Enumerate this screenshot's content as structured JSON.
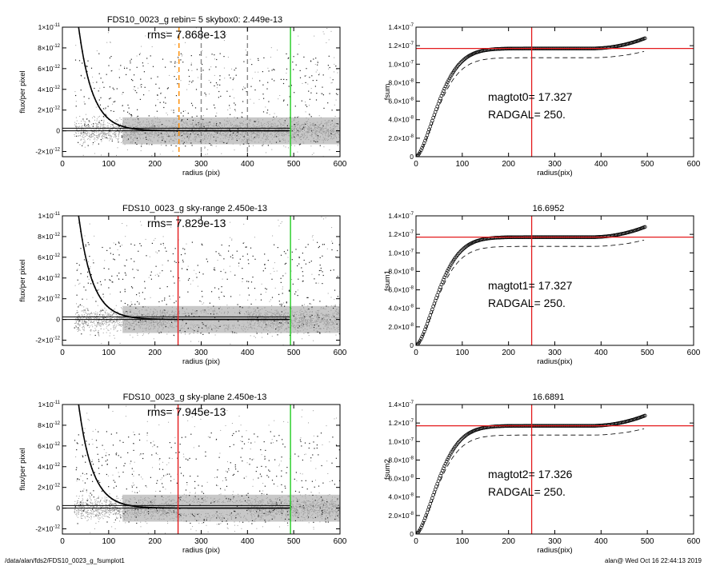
{
  "footer": {
    "left": "/data/alan/fds2/FDS10_0023_g_fsumplot1",
    "right": "alan@  Wed Oct 16 22:44:13 2019"
  },
  "colors": {
    "black": "#000000",
    "scatter": "#9a9a9a",
    "red": "#e41a1c",
    "green": "#22cc22",
    "orange": "#ff8c00",
    "dashgray": "#888888"
  },
  "chart_data": [
    {
      "type": "scatter",
      "title": "FDS10_0023_g rebin= 5    skybox0:  2.449e-13",
      "annotation": "rms= 7.868e-13",
      "xlabel": "radius (pix)",
      "ylabel": "flux/per pixel",
      "xlim": [
        0,
        600
      ],
      "ylim": [
        -2.5e-12,
        1e-11
      ],
      "xticks": [
        "0",
        "100",
        "200",
        "300",
        "400",
        "500",
        "600"
      ],
      "yticks": [
        {
          "v": 1e-11,
          "b": "1×10",
          "e": "-11"
        },
        {
          "v": 8e-12,
          "b": "8×10",
          "e": "-12"
        },
        {
          "v": 6e-12,
          "b": "6×10",
          "e": "-12"
        },
        {
          "v": 4e-12,
          "b": "4×10",
          "e": "-12"
        },
        {
          "v": 2e-12,
          "b": "2×10",
          "e": "-12"
        },
        {
          "v": 0,
          "b": "0",
          "e": ""
        },
        {
          "v": -2e-12,
          "b": "-2×10",
          "e": "-12"
        }
      ],
      "hlines": [
        2.449e-13,
        0
      ],
      "vlines": [
        {
          "x": 252,
          "color": "orange",
          "dash": true
        },
        {
          "x": 300,
          "color": "dashgray",
          "dash": true
        },
        {
          "x": 400,
          "color": "dashgray",
          "dash": true
        },
        {
          "x": 493,
          "color": "green",
          "dash": false
        }
      ],
      "profile": {
        "amplitude": 1.4e-11,
        "scale": 30,
        "start": 25,
        "end": 490
      }
    },
    {
      "type": "line",
      "title": "",
      "labels": [
        "magtot0=  17.327",
        "RADGAL=    250."
      ],
      "xlabel": "radius(pix)",
      "ylabel": "fsum",
      "xlim": [
        0,
        600
      ],
      "ylim": [
        0,
        1.4e-07
      ],
      "xticks": [
        "0",
        "100",
        "200",
        "300",
        "400",
        "500",
        "600"
      ],
      "yticks": [
        {
          "v": 1.4e-07,
          "b": "1.4×10",
          "e": "-7"
        },
        {
          "v": 1.2e-07,
          "b": "1.2×10",
          "e": "-7"
        },
        {
          "v": 1e-07,
          "b": "1.0×10",
          "e": "-7"
        },
        {
          "v": 8e-08,
          "b": "8.0×10",
          "e": "-8"
        },
        {
          "v": 6e-08,
          "b": "6.0×10",
          "e": "-8"
        },
        {
          "v": 4e-08,
          "b": "4.0×10",
          "e": "-8"
        },
        {
          "v": 2e-08,
          "b": "2.0×10",
          "e": "-8"
        },
        {
          "v": 0,
          "b": "0",
          "e": ""
        }
      ],
      "hline": 1.17e-07,
      "vline": 250,
      "curve": {
        "asymptote": 1.17e-07,
        "scale": 62,
        "rise": 1.1e-08,
        "end": 495
      },
      "dashed": {
        "asymptote": 1.07e-07,
        "scale": 62,
        "rise": 7e-09,
        "end": 495
      }
    },
    {
      "type": "scatter",
      "title": "FDS10_0023_g sky-range  2.450e-13",
      "annotation": "rms= 7.829e-13",
      "xlabel": "radius (pix)",
      "ylabel": "flux/per pixel",
      "xlim": [
        0,
        600
      ],
      "ylim": [
        -2.5e-12,
        1e-11
      ],
      "xticks": [
        "0",
        "100",
        "200",
        "300",
        "400",
        "500",
        "600"
      ],
      "yticks": [
        {
          "v": 1e-11,
          "b": "1×10",
          "e": "-11"
        },
        {
          "v": 8e-12,
          "b": "8×10",
          "e": "-12"
        },
        {
          "v": 6e-12,
          "b": "6×10",
          "e": "-12"
        },
        {
          "v": 4e-12,
          "b": "4×10",
          "e": "-12"
        },
        {
          "v": 2e-12,
          "b": "2×10",
          "e": "-12"
        },
        {
          "v": 0,
          "b": "0",
          "e": ""
        },
        {
          "v": -2e-12,
          "b": "-2×10",
          "e": "-12"
        }
      ],
      "hlines": [
        2.45e-13,
        0
      ],
      "vlines": [
        {
          "x": 250,
          "color": "red",
          "dash": false
        },
        {
          "x": 493,
          "color": "green",
          "dash": false
        }
      ],
      "profile": {
        "amplitude": 1.4e-11,
        "scale": 30,
        "start": 25,
        "end": 490
      }
    },
    {
      "type": "line",
      "title": "16.6952",
      "labels": [
        "magtot1=  17.327",
        "RADGAL=    250."
      ],
      "xlabel": "radius(pix)",
      "ylabel": "fsum1",
      "xlim": [
        0,
        600
      ],
      "ylim": [
        0,
        1.4e-07
      ],
      "xticks": [
        "0",
        "100",
        "200",
        "300",
        "400",
        "500",
        "600"
      ],
      "yticks": [
        {
          "v": 1.4e-07,
          "b": "1.4×10",
          "e": "-7"
        },
        {
          "v": 1.2e-07,
          "b": "1.2×10",
          "e": "-7"
        },
        {
          "v": 1e-07,
          "b": "1.0×10",
          "e": "-7"
        },
        {
          "v": 8e-08,
          "b": "8.0×10",
          "e": "-8"
        },
        {
          "v": 6e-08,
          "b": "6.0×10",
          "e": "-8"
        },
        {
          "v": 4e-08,
          "b": "4.0×10",
          "e": "-8"
        },
        {
          "v": 2e-08,
          "b": "2.0×10",
          "e": "-8"
        },
        {
          "v": 0,
          "b": "0",
          "e": ""
        }
      ],
      "hline": 1.17e-07,
      "vline": 250,
      "curve": {
        "asymptote": 1.17e-07,
        "scale": 62,
        "rise": 1.1e-08,
        "end": 495
      },
      "dashed": {
        "asymptote": 1.07e-07,
        "scale": 62,
        "rise": 7e-09,
        "end": 495
      }
    },
    {
      "type": "scatter",
      "title": "FDS10_0023_g sky-plane  2.450e-13",
      "annotation": "rms= 7.945e-13",
      "xlabel": "radius (pix)",
      "ylabel": "flux/per pixel",
      "xlim": [
        0,
        600
      ],
      "ylim": [
        -2.5e-12,
        1e-11
      ],
      "xticks": [
        "0",
        "100",
        "200",
        "300",
        "400",
        "500",
        "600"
      ],
      "yticks": [
        {
          "v": 1e-11,
          "b": "1×10",
          "e": "-11"
        },
        {
          "v": 8e-12,
          "b": "8×10",
          "e": "-12"
        },
        {
          "v": 6e-12,
          "b": "6×10",
          "e": "-12"
        },
        {
          "v": 4e-12,
          "b": "4×10",
          "e": "-12"
        },
        {
          "v": 2e-12,
          "b": "2×10",
          "e": "-12"
        },
        {
          "v": 0,
          "b": "0",
          "e": ""
        },
        {
          "v": -2e-12,
          "b": "-2×10",
          "e": "-12"
        }
      ],
      "hlines": [
        2.45e-13,
        0
      ],
      "vlines": [
        {
          "x": 250,
          "color": "red",
          "dash": false
        },
        {
          "x": 493,
          "color": "green",
          "dash": false
        }
      ],
      "profile": {
        "amplitude": 1.4e-11,
        "scale": 30,
        "start": 25,
        "end": 490
      }
    },
    {
      "type": "line",
      "title": "16.6891",
      "labels": [
        "magtot2=  17.326",
        "RADGAL=    250."
      ],
      "xlabel": "radius(pix)",
      "ylabel": "fsum2",
      "xlim": [
        0,
        600
      ],
      "ylim": [
        0,
        1.4e-07
      ],
      "xticks": [
        "0",
        "100",
        "200",
        "300",
        "400",
        "500",
        "600"
      ],
      "yticks": [
        {
          "v": 1.4e-07,
          "b": "1.4×10",
          "e": "-7"
        },
        {
          "v": 1.2e-07,
          "b": "1.2×10",
          "e": "-7"
        },
        {
          "v": 1e-07,
          "b": "1.0×10",
          "e": "-7"
        },
        {
          "v": 8e-08,
          "b": "8.0×10",
          "e": "-8"
        },
        {
          "v": 6e-08,
          "b": "6.0×10",
          "e": "-8"
        },
        {
          "v": 4e-08,
          "b": "4.0×10",
          "e": "-8"
        },
        {
          "v": 2e-08,
          "b": "2.0×10",
          "e": "-8"
        },
        {
          "v": 0,
          "b": "0",
          "e": ""
        }
      ],
      "hline": 1.17e-07,
      "vline": 250,
      "curve": {
        "asymptote": 1.17e-07,
        "scale": 62,
        "rise": 1.1e-08,
        "end": 495
      },
      "dashed": {
        "asymptote": 1.07e-07,
        "scale": 62,
        "rise": 7e-09,
        "end": 495
      }
    }
  ]
}
